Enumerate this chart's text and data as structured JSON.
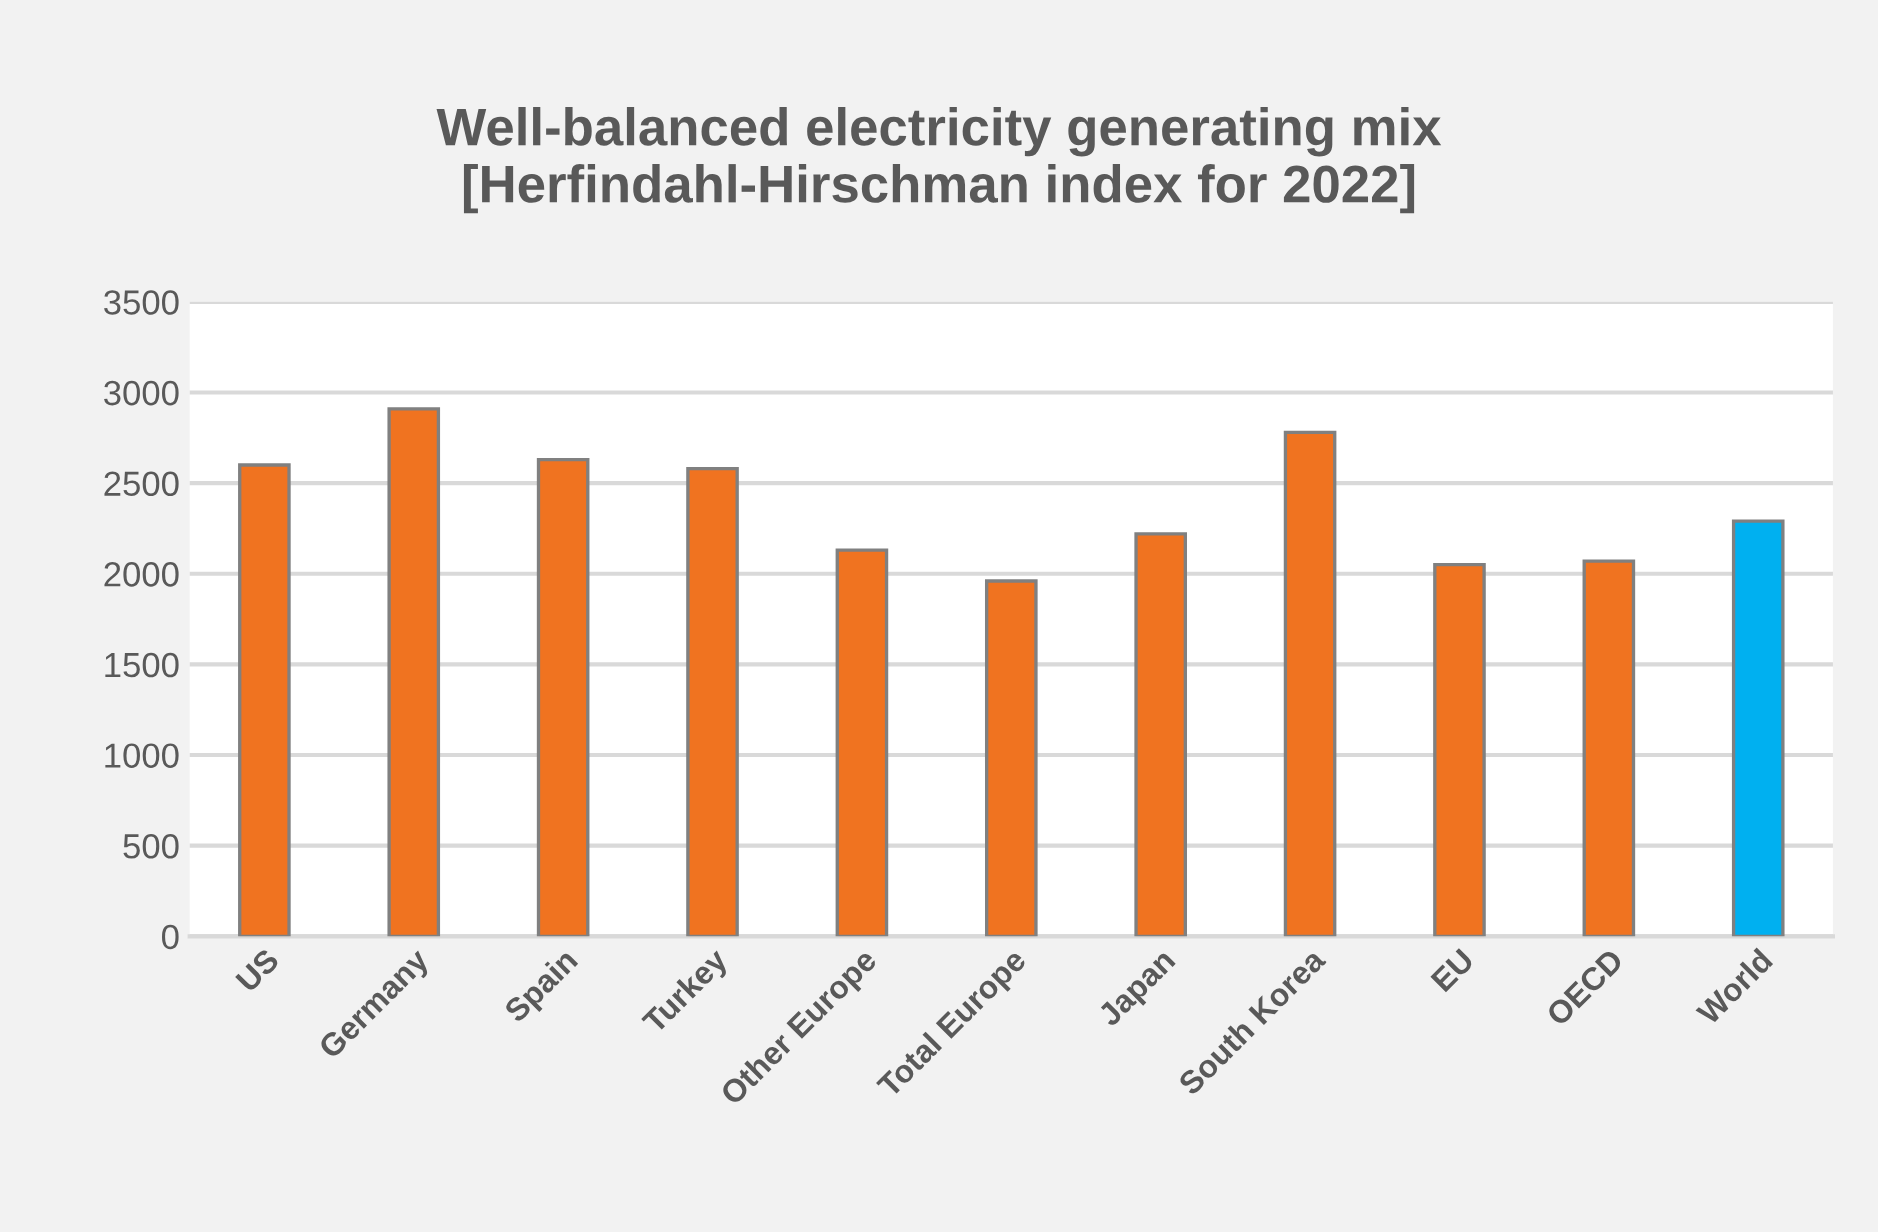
{
  "chart_data": {
    "type": "bar",
    "title": "Well-balanced electricity generating mix\n[Herfindahl-Hirschman index for 2022]",
    "categories": [
      "US",
      "Germany",
      "Spain",
      "Turkey",
      "Other Europe",
      "Total Europe",
      "Japan",
      "South Korea",
      "EU",
      "OECD",
      "World"
    ],
    "values": [
      2600,
      2910,
      2630,
      2580,
      2130,
      1960,
      2220,
      2780,
      2050,
      2070,
      2290
    ],
    "colors": [
      "#f07320",
      "#f07320",
      "#f07320",
      "#f07320",
      "#f07320",
      "#f07320",
      "#f07320",
      "#f07320",
      "#f07320",
      "#f07320",
      "#00b0f0"
    ],
    "ylim": [
      0,
      3500
    ],
    "yticks": [
      0,
      500,
      1000,
      1500,
      2000,
      2500,
      3000,
      3500
    ],
    "grid": "y",
    "legend": false
  }
}
